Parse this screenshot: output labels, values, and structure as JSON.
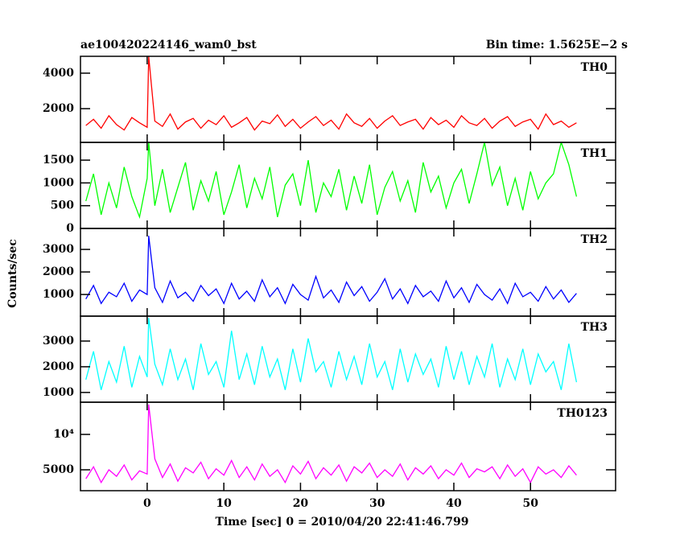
{
  "chart_data": {
    "type": "line",
    "title": "ae100420224146_wam0_bst",
    "subtitle": "Bin time: 1.5625E−2 s",
    "xlabel": "Time [sec] 0 = 2010/04/20 22:41:46.799",
    "ylabel": "Counts/sec",
    "xlim": [
      -8.7,
      61.1
    ],
    "xticks": [
      0,
      10,
      20,
      30,
      40,
      50
    ],
    "x": [
      -8,
      -7,
      -6,
      -5,
      -4,
      -3,
      -2,
      -1,
      0,
      0.2,
      1,
      2,
      3,
      4,
      5,
      6,
      7,
      8,
      9,
      10,
      11,
      12,
      13,
      14,
      15,
      16,
      17,
      18,
      19,
      20,
      21,
      22,
      23,
      24,
      25,
      26,
      27,
      28,
      29,
      30,
      31,
      32,
      33,
      34,
      35,
      36,
      37,
      38,
      39,
      40,
      41,
      42,
      43,
      44,
      45,
      46,
      47,
      48,
      49,
      50,
      51,
      52,
      53,
      54,
      55,
      56
    ],
    "panels": [
      {
        "name": "TH0",
        "color": "#ff0000",
        "ylim": [
          100,
          4950
        ],
        "yticks": [
          2000,
          4000
        ],
        "log_scale": false,
        "values": [
          1050,
          1400,
          900,
          1600,
          1100,
          800,
          1500,
          1200,
          950,
          4950,
          1300,
          1000,
          1700,
          850,
          1250,
          1450,
          900,
          1350,
          1100,
          1600,
          950,
          1200,
          1500,
          800,
          1300,
          1150,
          1650,
          1000,
          1400,
          900,
          1250,
          1550,
          1050,
          1350,
          850,
          1700,
          1200,
          1000,
          1450,
          900,
          1300,
          1600,
          1050,
          1250,
          1400,
          850,
          1500,
          1100,
          1350,
          950,
          1600,
          1200,
          1050,
          1450,
          900,
          1300,
          1550,
          1000,
          1250,
          1400,
          850,
          1700,
          1100,
          1300,
          950,
          1200
        ]
      },
      {
        "name": "TH1",
        "color": "#00ff00",
        "ylim": [
          0,
          1890
        ],
        "yticks": [
          0,
          500,
          1000,
          1500
        ],
        "log_scale": false,
        "values": [
          600,
          1200,
          300,
          1000,
          450,
          1350,
          700,
          250,
          1100,
          1890,
          500,
          1300,
          350,
          900,
          1450,
          400,
          1050,
          600,
          1250,
          300,
          800,
          1400,
          450,
          1100,
          650,
          1350,
          250,
          950,
          1200,
          500,
          1500,
          350,
          1000,
          700,
          1300,
          400,
          1150,
          550,
          1400,
          300,
          900,
          1250,
          600,
          1050,
          350,
          1450,
          800,
          1150,
          450,
          1000,
          1300,
          550,
          1200,
          1890,
          950,
          1350,
          500,
          1100,
          400,
          1250,
          650,
          1000,
          1200,
          1890,
          1400,
          700
        ]
      },
      {
        "name": "TH2",
        "color": "#0000ff",
        "ylim": [
          40,
          3930
        ],
        "yticks": [
          1000,
          2000,
          3000
        ],
        "log_scale": false,
        "values": [
          800,
          1400,
          600,
          1100,
          900,
          1500,
          700,
          1200,
          1000,
          3600,
          1300,
          650,
          1600,
          850,
          1100,
          700,
          1400,
          950,
          1250,
          600,
          1500,
          800,
          1150,
          700,
          1650,
          900,
          1300,
          600,
          1450,
          1000,
          750,
          1800,
          850,
          1200,
          650,
          1550,
          950,
          1350,
          700,
          1100,
          1700,
          800,
          1250,
          600,
          1400,
          900,
          1150,
          700,
          1600,
          850,
          1300,
          650,
          1450,
          1000,
          750,
          1250,
          600,
          1500,
          900,
          1100,
          700,
          1350,
          800,
          1200,
          650,
          1050
        ]
      },
      {
        "name": "TH3",
        "color": "#00ffff",
        "ylim": [
          620,
          3970
        ],
        "yticks": [
          1000,
          2000,
          3000
        ],
        "log_scale": false,
        "values": [
          1500,
          2600,
          1100,
          2200,
          1400,
          2800,
          1200,
          2400,
          1600,
          3900,
          2100,
          1300,
          2700,
          1500,
          2300,
          1100,
          2900,
          1700,
          2200,
          1200,
          3400,
          1500,
          2500,
          1300,
          2800,
          1600,
          2300,
          1100,
          2700,
          1400,
          3100,
          1800,
          2200,
          1200,
          2600,
          1500,
          2400,
          1300,
          2900,
          1600,
          2200,
          1100,
          2700,
          1400,
          2500,
          1700,
          2300,
          1200,
          2800,
          1500,
          2600,
          1300,
          2400,
          1600,
          2900,
          1200,
          2300,
          1500,
          2700,
          1300,
          2500,
          1800,
          2200,
          1100,
          2900,
          1400
        ]
      },
      {
        "name": "TH0123",
        "color": "#ff00ff",
        "ylim": [
          3320,
          18800
        ],
        "yticks": [
          5000,
          {
            "value": 10000,
            "label": "10⁴"
          }
        ],
        "log_scale": true,
        "values": [
          4200,
          5300,
          3900,
          5000,
          4400,
          5500,
          4100,
          4900,
          4600,
          18000,
          6200,
          4300,
          5600,
          4000,
          5200,
          4700,
          5800,
          4200,
          5100,
          4500,
          6000,
          4300,
          5300,
          4100,
          5600,
          4400,
          5000,
          3900,
          5400,
          4600,
          5900,
          4200,
          5200,
          4500,
          5500,
          4000,
          5300,
          4700,
          5700,
          4300,
          5000,
          4400,
          5600,
          4100,
          5200,
          4600,
          5400,
          4200,
          5000,
          4500,
          5700,
          4300,
          5100,
          4800,
          5300,
          4200,
          5500,
          4400,
          5100,
          3900,
          5300,
          4600,
          5000,
          4300,
          5400,
          4500
        ]
      }
    ]
  }
}
